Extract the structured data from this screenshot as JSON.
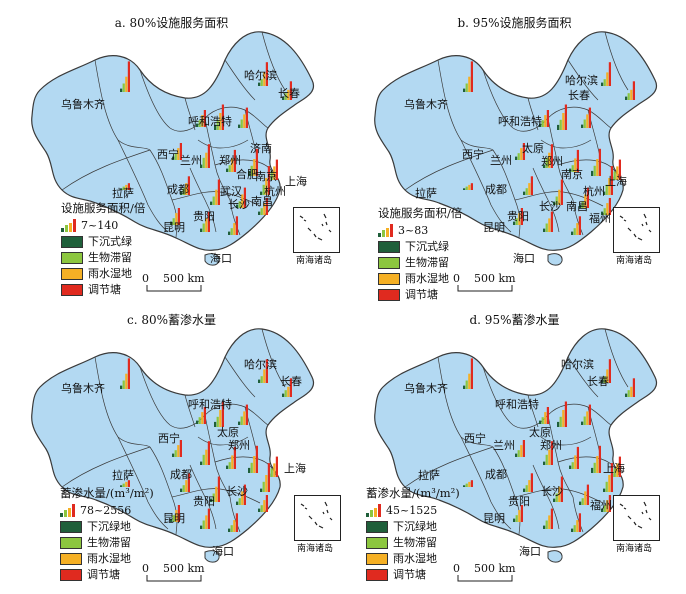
{
  "colors": {
    "land": "#b3d9f2",
    "border": "#3a3a3a",
    "sunken_green": "#1f5f3a",
    "bio_retention": "#8cc63f",
    "rain_wetland": "#f5b025",
    "regulating_pond": "#e02a1f"
  },
  "panels": [
    {
      "title": "a. 80%设施服务面积",
      "legend_title": "设施服务面积/倍",
      "range": "7~140",
      "legend_items": [
        "下沉式绿",
        "生物滞留",
        "雨水湿地",
        "调节塘"
      ],
      "scale": "0    500 km",
      "inset_label": "南海诸岛",
      "cities": {
        "urumqi": "乌鲁木齐",
        "harbin": "哈尔滨",
        "changchun": "长春",
        "hohhot": "呼和浩特",
        "xining": "西宁",
        "lanzhou": "兰州",
        "zhengzhou": "郑州",
        "jinan": "济南",
        "hefei": "合肥",
        "nanjing": "南京",
        "shanghai": "上海",
        "hangzhou": "杭州",
        "chengdu": "成都",
        "wuhan": "武汉",
        "changsha": "长沙",
        "nanchang": "南昌",
        "lhasa": "拉萨",
        "guiyang": "贵阳",
        "kunming": "昆明",
        "haikou": "海口"
      }
    },
    {
      "title": "b. 95%设施服务面积",
      "legend_title": "设施服务面积/倍",
      "range": "3~83",
      "legend_items": [
        "下沉式绿",
        "生物滞留",
        "雨水湿地",
        "调节塘"
      ],
      "scale": "0    500 km",
      "inset_label": "南海诸岛",
      "cities": {
        "urumqi": "乌鲁木齐",
        "harbin": "哈尔滨",
        "changchun": "长春",
        "hohhot": "呼和浩特",
        "xining": "西宁",
        "lanzhou": "兰州",
        "taiyuan": "太原",
        "zhengzhou": "郑州",
        "nanjing": "南京",
        "shanghai": "上海",
        "hangzhou": "杭州",
        "chengdu": "成都",
        "changsha": "长沙",
        "nanchang": "南昌",
        "fuzhou": "福州",
        "lhasa": "拉萨",
        "guiyang": "贵阳",
        "kunming": "昆明",
        "haikou": "海口"
      }
    },
    {
      "title": "c. 80%蓄渗水量",
      "legend_title": "蓄渗水量/(m³/m²)",
      "range": "78~2556",
      "legend_items": [
        "下沉绿地",
        "生物滞留",
        "雨水湿地",
        "调节塘"
      ],
      "scale": "0    500 km",
      "inset_label": "南海诸岛",
      "cities": {
        "urumqi": "乌鲁木齐",
        "harbin": "哈尔滨",
        "changchun": "长春",
        "hohhot": "呼和浩特",
        "xining": "西宁",
        "taiyuan": "太原",
        "zhengzhou": "郑州",
        "shanghai": "上海",
        "chengdu": "成都",
        "changsha": "长沙",
        "lhasa": "拉萨",
        "guiyang": "贵阳",
        "kunming": "昆明",
        "haikou": "海口"
      }
    },
    {
      "title": "d. 95%蓄渗水量",
      "legend_title": "蓄渗水量/(m³/m²)",
      "range": "45~1525",
      "legend_items": [
        "下沉绿地",
        "生物滞留",
        "雨水湿地",
        "调节塘"
      ],
      "scale": "0    500 km",
      "inset_label": "南海诸岛",
      "cities": {
        "urumqi": "乌鲁木齐",
        "harbin": "哈尔滨",
        "changchun": "长春",
        "hohhot": "呼和浩特",
        "xining": "西宁",
        "lanzhou": "兰州",
        "taiyuan": "太原",
        "zhengzhou": "郑州",
        "shanghai": "上海",
        "chengdu": "成都",
        "changsha": "长沙",
        "fuzhou": "福州",
        "lhasa": "拉萨",
        "guiyang": "贵阳",
        "kunming": "昆明",
        "haikou": "海口"
      }
    }
  ]
}
